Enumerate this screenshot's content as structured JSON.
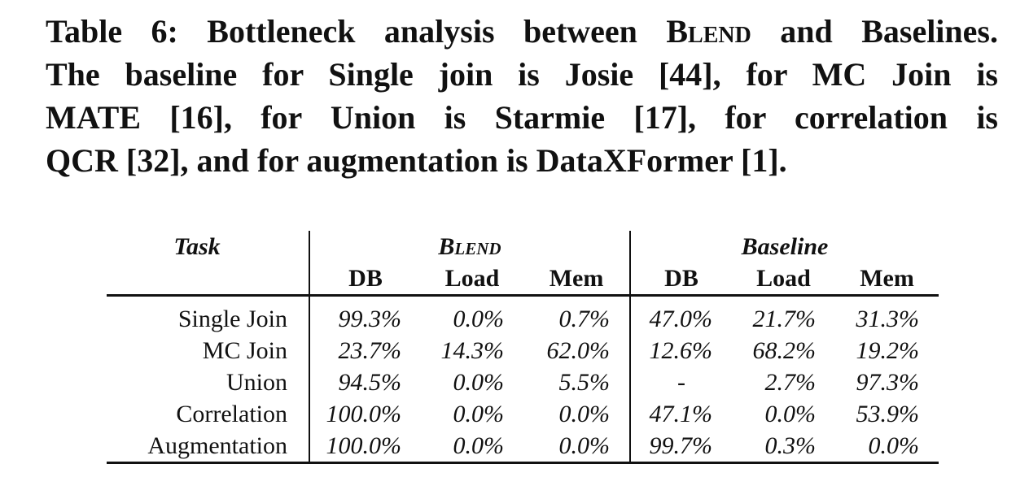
{
  "caption": {
    "lines": [
      [
        "Table 6: Bottleneck analysis between ",
        "Blend",
        " and Baselines."
      ],
      [
        "The baseline for Single join is Josie [44], for MC Join is"
      ],
      [
        "MATE [16], for Union is Starmie [17], for correlation is"
      ],
      [
        "QCR [32], and for augmentation is DataXFormer [1]."
      ]
    ]
  },
  "table": {
    "task_header": "Task",
    "group_blend": "Blend",
    "group_baseline": "Baseline",
    "sub_headers": [
      "DB",
      "Load",
      "Mem",
      "DB",
      "Load",
      "Mem"
    ],
    "rows": [
      {
        "task": "Single Join",
        "values": [
          "99.3%",
          "0.0%",
          "0.7%",
          "47.0%",
          "21.7%",
          "31.3%"
        ]
      },
      {
        "task": "MC Join",
        "values": [
          "23.7%",
          "14.3%",
          "62.0%",
          "12.6%",
          "68.2%",
          "19.2%"
        ]
      },
      {
        "task": "Union",
        "values": [
          "94.5%",
          "0.0%",
          "5.5%",
          "-",
          "2.7%",
          "97.3%"
        ]
      },
      {
        "task": "Correlation",
        "values": [
          "100.0%",
          "0.0%",
          "0.0%",
          "47.1%",
          "0.0%",
          "53.9%"
        ]
      },
      {
        "task": "Augmentation",
        "values": [
          "100.0%",
          "0.0%",
          "0.0%",
          "99.7%",
          "0.3%",
          "0.0%"
        ]
      }
    ]
  }
}
